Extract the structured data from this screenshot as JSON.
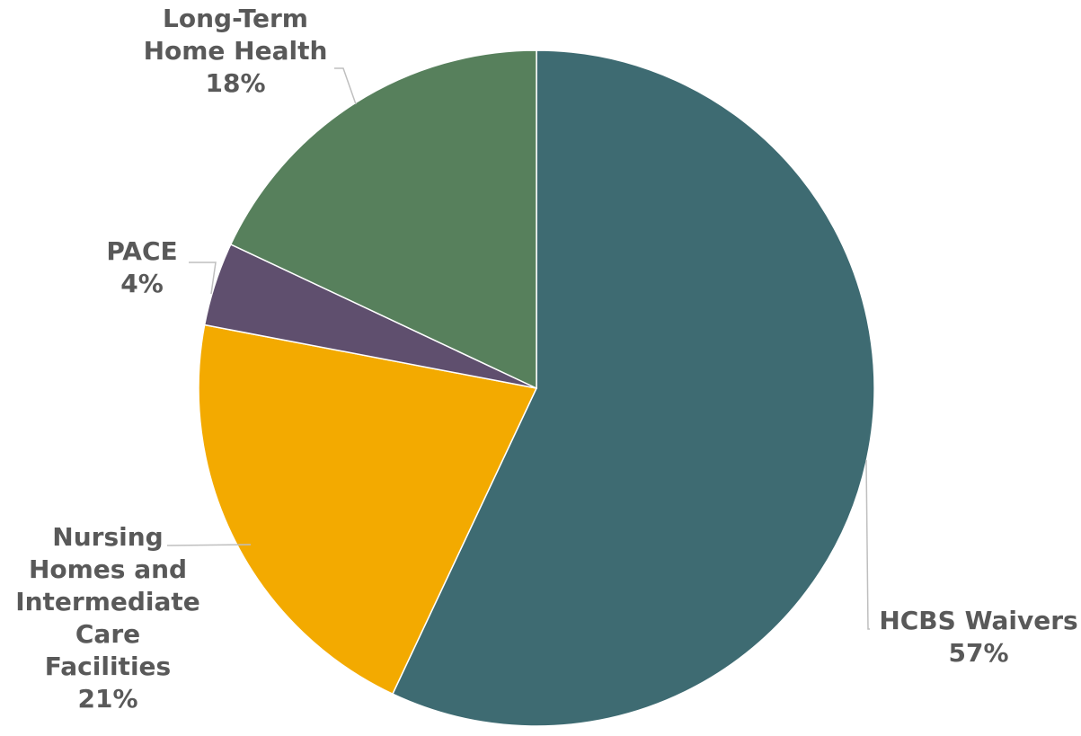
{
  "chart_data": {
    "type": "pie",
    "title": "",
    "slices": [
      {
        "label": [
          "HCBS Waivers"
        ],
        "value": 57,
        "display": "57%",
        "color": "#3e6b72"
      },
      {
        "label": [
          "Nursing",
          "Homes and",
          "Intermediate",
          "Care",
          "Facilities"
        ],
        "value": 21,
        "display": "21%",
        "color": "#f3aa00"
      },
      {
        "label": [
          "PACE"
        ],
        "value": 4,
        "display": "4%",
        "color": "#5f4f6e"
      },
      {
        "label": [
          "Long-Term",
          "Home Health"
        ],
        "value": 18,
        "display": "18%",
        "color": "#57805c"
      }
    ],
    "start_angle_deg": 0,
    "direction": "clockwise",
    "legend": "none",
    "label_line_color": "#bfbfbf",
    "label_text_color": "#595959"
  }
}
